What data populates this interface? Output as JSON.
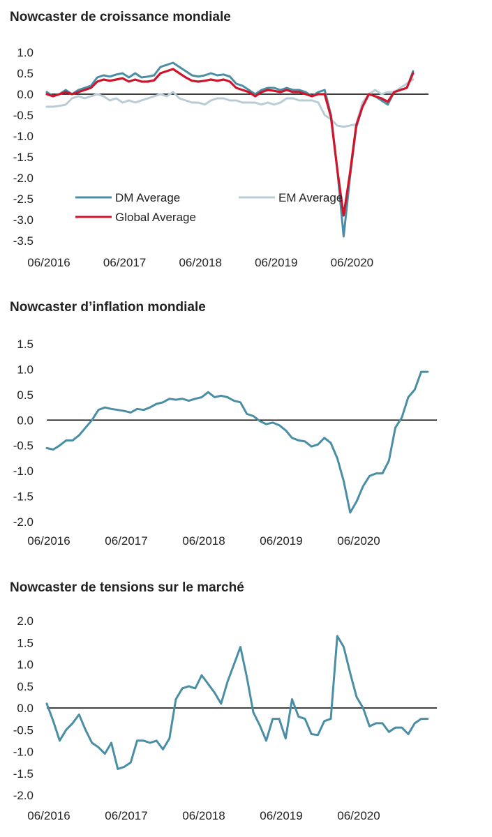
{
  "colors": {
    "dm": "#4a8ea5",
    "em": "#b8ccd6",
    "global": "#d0142c",
    "zero": "#000000",
    "single": "#4a8ea5"
  },
  "chart_data": [
    {
      "type": "line",
      "title": "Nowcaster de croissance mondiale",
      "x_tick_labels": [
        "06/2016",
        "06/2017",
        "06/2018",
        "06/2019",
        "06/2020"
      ],
      "y_tick_labels": [
        "1.0",
        "0.5",
        "0.0",
        "-0.5",
        "-1.0",
        "-1.5",
        "-2.0",
        "-2.5",
        "-3.0",
        "-3.5"
      ],
      "ylim": [
        -3.5,
        1.0
      ],
      "xlim": [
        "2016-06",
        "2021-06"
      ],
      "legend": [
        "DM Average",
        "EM Average",
        "Global Average"
      ],
      "legend_placement": "bottom-left",
      "x": [
        "2016-06",
        "2016-07",
        "2016-08",
        "2016-09",
        "2016-10",
        "2016-11",
        "2016-12",
        "2017-01",
        "2017-02",
        "2017-03",
        "2017-04",
        "2017-05",
        "2017-06",
        "2017-07",
        "2017-08",
        "2017-09",
        "2017-10",
        "2017-11",
        "2017-12",
        "2018-01",
        "2018-02",
        "2018-03",
        "2018-04",
        "2018-05",
        "2018-06",
        "2018-07",
        "2018-08",
        "2018-09",
        "2018-10",
        "2018-11",
        "2018-12",
        "2019-01",
        "2019-02",
        "2019-03",
        "2019-04",
        "2019-05",
        "2019-06",
        "2019-07",
        "2019-08",
        "2019-09",
        "2019-10",
        "2019-11",
        "2019-12",
        "2020-01",
        "2020-02",
        "2020-03",
        "2020-04",
        "2020-05",
        "2020-06",
        "2020-07",
        "2020-08",
        "2020-09",
        "2020-10",
        "2020-11",
        "2020-12",
        "2021-01",
        "2021-02",
        "2021-03",
        "2021-04"
      ],
      "series": [
        {
          "name": "DM Average",
          "values": [
            0.05,
            -0.05,
            0.0,
            0.1,
            0.0,
            0.1,
            0.15,
            0.2,
            0.4,
            0.45,
            0.42,
            0.47,
            0.5,
            0.4,
            0.5,
            0.4,
            0.42,
            0.45,
            0.65,
            0.7,
            0.75,
            0.65,
            0.55,
            0.45,
            0.42,
            0.45,
            0.5,
            0.45,
            0.47,
            0.42,
            0.25,
            0.2,
            0.1,
            0.0,
            0.1,
            0.15,
            0.15,
            0.1,
            0.15,
            0.1,
            0.1,
            0.05,
            -0.05,
            0.05,
            0.1,
            -0.5,
            -1.8,
            -3.4,
            -2.0,
            -0.8,
            -0.3,
            0.0,
            -0.05,
            -0.15,
            -0.25,
            0.05,
            0.1,
            0.15,
            0.55
          ]
        },
        {
          "name": "EM Average",
          "values": [
            -0.3,
            -0.3,
            -0.28,
            -0.25,
            -0.1,
            -0.05,
            -0.1,
            -0.05,
            0.0,
            -0.05,
            -0.15,
            -0.1,
            -0.2,
            -0.15,
            -0.2,
            -0.15,
            -0.1,
            -0.05,
            0.0,
            -0.05,
            0.05,
            -0.1,
            -0.15,
            -0.2,
            -0.2,
            -0.25,
            -0.15,
            -0.1,
            -0.1,
            -0.15,
            -0.15,
            -0.2,
            -0.2,
            -0.2,
            -0.25,
            -0.2,
            -0.25,
            -0.2,
            -0.1,
            -0.1,
            -0.15,
            -0.15,
            -0.15,
            -0.2,
            -0.5,
            -0.6,
            -0.75,
            -0.78,
            -0.75,
            -0.72,
            -0.2,
            0.0,
            0.1,
            0.0,
            0.05,
            0.05,
            0.15,
            0.25,
            0.35
          ]
        },
        {
          "name": "Global Average",
          "values": [
            0.0,
            -0.05,
            0.0,
            0.05,
            0.0,
            0.05,
            0.1,
            0.15,
            0.3,
            0.35,
            0.32,
            0.35,
            0.38,
            0.3,
            0.35,
            0.3,
            0.3,
            0.33,
            0.5,
            0.55,
            0.6,
            0.5,
            0.4,
            0.32,
            0.3,
            0.32,
            0.35,
            0.32,
            0.35,
            0.3,
            0.15,
            0.1,
            0.05,
            -0.05,
            0.05,
            0.1,
            0.08,
            0.05,
            0.1,
            0.05,
            0.05,
            0.0,
            -0.05,
            0.0,
            0.0,
            -0.55,
            -1.8,
            -2.9,
            -1.9,
            -0.75,
            -0.3,
            0.0,
            -0.05,
            -0.1,
            -0.18,
            0.05,
            0.1,
            0.15,
            0.5
          ]
        }
      ]
    },
    {
      "type": "line",
      "title": "Nowcaster d’inflation mondiale",
      "x_tick_labels": [
        "06/2016",
        "06/2017",
        "06/2018",
        "06/2019",
        "06/2020"
      ],
      "y_tick_labels": [
        "1.5",
        "1.0",
        "0.5",
        "0.0",
        "-0.5",
        "-1.0",
        "-1.5",
        "-2.0"
      ],
      "ylim": [
        -2.0,
        1.5
      ],
      "xlim": [
        "2016-06",
        "2021-06"
      ],
      "x": [
        "2016-06",
        "2016-07",
        "2016-08",
        "2016-09",
        "2016-10",
        "2016-11",
        "2016-12",
        "2017-01",
        "2017-02",
        "2017-03",
        "2017-04",
        "2017-05",
        "2017-06",
        "2017-07",
        "2017-08",
        "2017-09",
        "2017-10",
        "2017-11",
        "2017-12",
        "2018-01",
        "2018-02",
        "2018-03",
        "2018-04",
        "2018-05",
        "2018-06",
        "2018-07",
        "2018-08",
        "2018-09",
        "2018-10",
        "2018-11",
        "2018-12",
        "2019-01",
        "2019-02",
        "2019-03",
        "2019-04",
        "2019-05",
        "2019-06",
        "2019-07",
        "2019-08",
        "2019-09",
        "2019-10",
        "2019-11",
        "2019-12",
        "2020-01",
        "2020-02",
        "2020-03",
        "2020-04",
        "2020-05",
        "2020-06",
        "2020-07",
        "2020-08",
        "2020-09",
        "2020-10",
        "2020-11",
        "2020-12",
        "2021-01",
        "2021-02",
        "2021-03",
        "2021-04",
        "2021-05"
      ],
      "series": [
        {
          "values": [
            -0.55,
            -0.58,
            -0.5,
            -0.4,
            -0.4,
            -0.3,
            -0.15,
            0.0,
            0.2,
            0.25,
            0.22,
            0.2,
            0.18,
            0.15,
            0.22,
            0.2,
            0.25,
            0.32,
            0.35,
            0.42,
            0.4,
            0.42,
            0.38,
            0.42,
            0.45,
            0.55,
            0.45,
            0.48,
            0.45,
            0.38,
            0.35,
            0.12,
            0.08,
            -0.02,
            -0.08,
            -0.05,
            -0.1,
            -0.2,
            -0.35,
            -0.4,
            -0.42,
            -0.52,
            -0.48,
            -0.35,
            -0.45,
            -0.75,
            -1.2,
            -1.82,
            -1.6,
            -1.3,
            -1.1,
            -1.05,
            -1.05,
            -0.8,
            -0.15,
            0.05,
            0.45,
            0.6,
            0.95,
            0.95
          ]
        }
      ]
    },
    {
      "type": "line",
      "title": "Nowcaster de tensions sur le marché",
      "x_tick_labels": [
        "06/2016",
        "06/2017",
        "06/2018",
        "06/2019",
        "06/2020"
      ],
      "y_tick_labels": [
        "2.0",
        "1.5",
        "1.0",
        "0.5",
        "0.0",
        "-0.5",
        "-1.0",
        "-1.5",
        "-2.0"
      ],
      "ylim": [
        -2.0,
        2.0
      ],
      "xlim": [
        "2016-06",
        "2021-06"
      ],
      "x": [
        "2016-06",
        "2016-07",
        "2016-08",
        "2016-09",
        "2016-10",
        "2016-11",
        "2016-12",
        "2017-01",
        "2017-02",
        "2017-03",
        "2017-04",
        "2017-05",
        "2017-06",
        "2017-07",
        "2017-08",
        "2017-09",
        "2017-10",
        "2017-11",
        "2017-12",
        "2018-01",
        "2018-02",
        "2018-03",
        "2018-04",
        "2018-05",
        "2018-06",
        "2018-07",
        "2018-08",
        "2018-09",
        "2018-10",
        "2018-11",
        "2018-12",
        "2019-01",
        "2019-02",
        "2019-03",
        "2019-04",
        "2019-05",
        "2019-06",
        "2019-07",
        "2019-08",
        "2019-09",
        "2019-10",
        "2019-11",
        "2019-12",
        "2020-01",
        "2020-02",
        "2020-03",
        "2020-04",
        "2020-05",
        "2020-06",
        "2020-07",
        "2020-08",
        "2020-09",
        "2020-10",
        "2020-11",
        "2020-12",
        "2021-01",
        "2021-02",
        "2021-03",
        "2021-04",
        "2021-05"
      ],
      "series": [
        {
          "values": [
            0.1,
            -0.3,
            -0.75,
            -0.5,
            -0.35,
            -0.15,
            -0.5,
            -0.8,
            -0.9,
            -1.05,
            -0.8,
            -1.4,
            -1.35,
            -1.25,
            -0.75,
            -0.75,
            -0.8,
            -0.75,
            -0.95,
            -0.7,
            0.2,
            0.45,
            0.5,
            0.45,
            0.75,
            0.55,
            0.35,
            0.1,
            0.6,
            1.0,
            1.4,
            0.7,
            -0.1,
            -0.4,
            -0.75,
            -0.25,
            -0.25,
            -0.7,
            0.2,
            -0.2,
            -0.25,
            -0.6,
            -0.62,
            -0.3,
            -0.25,
            1.65,
            1.4,
            0.8,
            0.25,
            0.0,
            -0.42,
            -0.35,
            -0.35,
            -0.55,
            -0.45,
            -0.45,
            -0.6,
            -0.35,
            -0.25,
            -0.25
          ]
        }
      ]
    }
  ]
}
